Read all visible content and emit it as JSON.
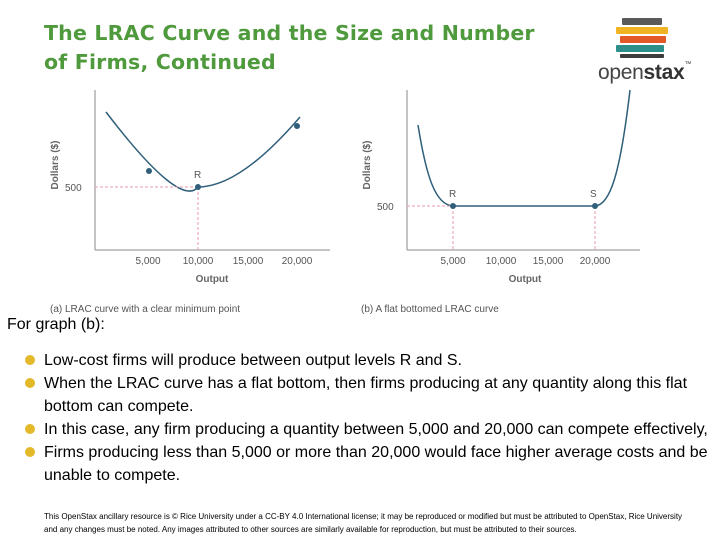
{
  "title": {
    "line1": "The LRAC Curve and the Size and Number",
    "line2": "of Firms, Continued"
  },
  "logo": {
    "name": "openstax",
    "word_open": "open",
    "word_stax": "stax",
    "trademark": "™",
    "bar_colors": [
      "#5a5a5a",
      "#f0b323",
      "#e15a27",
      "#2c8f8a",
      "#3d3d3d"
    ]
  },
  "graphs": {
    "a": {
      "caption": "(a) LRAC curve with a clear minimum point",
      "ylabel": "Dollars ($)",
      "xlabel": "Output",
      "y_tick": "500",
      "x_ticks": [
        "5,000",
        "10,000",
        "15,000",
        "20,000"
      ],
      "point_label": "R"
    },
    "b": {
      "caption": "(b) A flat bottomed LRAC curve",
      "ylabel": "Dollars ($)",
      "xlabel": "Output",
      "y_tick": "500",
      "x_ticks": [
        "5,000",
        "10,000",
        "15,000",
        "20,000"
      ],
      "point_labels": [
        "R",
        "S"
      ]
    }
  },
  "chart_data": [
    {
      "type": "line",
      "title": "(a) LRAC curve with a clear minimum point",
      "xlabel": "Output",
      "ylabel": "Dollars ($)",
      "x_ticks": [
        5000,
        10000,
        15000,
        20000
      ],
      "y_ticks": [
        500
      ],
      "points": [
        {
          "label": "",
          "x": 5000,
          "y": 530
        },
        {
          "label": "R",
          "x": 10000,
          "y": 500
        },
        {
          "label": "",
          "x": 20000,
          "y": 620
        }
      ]
    },
    {
      "type": "line",
      "title": "(b) A flat bottomed LRAC curve",
      "xlabel": "Output",
      "ylabel": "Dollars ($)",
      "x_ticks": [
        5000,
        10000,
        15000,
        20000
      ],
      "y_ticks": [
        500
      ],
      "points": [
        {
          "label": "R",
          "x": 5000,
          "y": 500
        },
        {
          "label": "S",
          "x": 20000,
          "y": 500
        }
      ]
    }
  ],
  "intro": "For graph (b):",
  "bullets": [
    "Low-cost firms will produce between output levels R and S.",
    "When the LRAC curve has a flat bottom, then firms producing at any quantity along this flat bottom can compete.",
    "In this case, any firm producing a quantity between 5,000 and 20,000 can compete effectively,",
    "Firms producing less than 5,000 or more than 20,000 would face higher average costs and be unable to compete."
  ],
  "footer": "This OpenStax ancillary resource is © Rice University under a CC-BY 4.0 International license; it may be reproduced or modified but must be attributed to OpenStax, Rice University and any changes must be noted.  Any images attributed to other sources are similarly available for reproduction, but must be attributed to their sources."
}
